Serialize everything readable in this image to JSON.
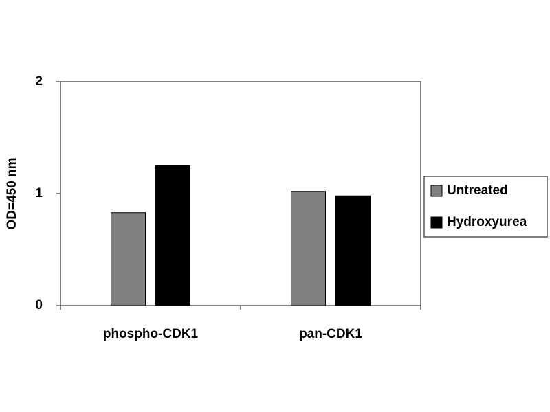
{
  "chart_data": {
    "type": "bar",
    "y_label": "OD=450 nm",
    "categories": [
      "phospho-CDK1",
      "pan-CDK1"
    ],
    "series": [
      {
        "name": "Untreated",
        "color": "#808080",
        "values": [
          0.83,
          1.02
        ]
      },
      {
        "name": "Hydroxyurea",
        "color": "#000000",
        "values": [
          1.25,
          0.98
        ]
      }
    ],
    "ylim": [
      0,
      2
    ],
    "yticks": [
      0,
      1,
      2
    ],
    "grid": false,
    "legend": "right"
  }
}
